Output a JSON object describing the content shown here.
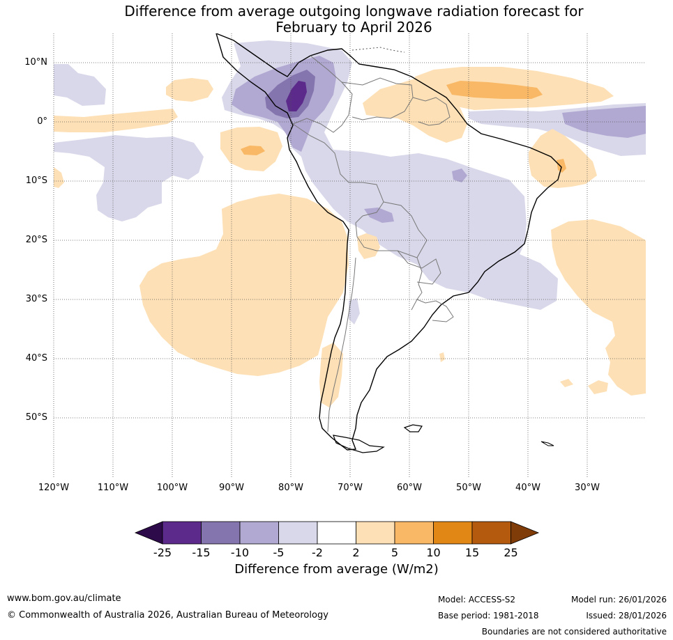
{
  "title": {
    "line1": "Difference from average outgoing longwave radiation forecast for",
    "line2": "February to April 2026"
  },
  "map": {
    "lat_labels": [
      "10°N",
      "0°",
      "10°S",
      "20°S",
      "30°S",
      "40°S",
      "50°S"
    ],
    "lon_labels": [
      "120°W",
      "110°W",
      "100°W",
      "90°W",
      "80°W",
      "70°W",
      "60°W",
      "50°W",
      "40°W",
      "30°W"
    ],
    "gridline_style": "dotted",
    "features": [
      "South America coastline",
      "national borders",
      "OLR anomaly shading"
    ]
  },
  "colorbar": {
    "ticks": [
      "-25",
      "-15",
      "-10",
      "-5",
      "-2",
      "2",
      "5",
      "10",
      "15",
      "25"
    ],
    "colors": [
      "#2d0a4a",
      "#5b2a8a",
      "#8575ae",
      "#b1a9d2",
      "#d9d8ea",
      "#ffffff",
      "#fde0b5",
      "#f9b865",
      "#e08716",
      "#b35a0e",
      "#7f3b08"
    ],
    "label": "Difference from average (W/m2)"
  },
  "footer": {
    "website": "www.bom.gov.au/climate",
    "copyright": "© Commonwealth of Australia 2026, Australian Bureau of Meteorology",
    "model": "Model: ACCESS-S2",
    "model_run": "Model run: 26/01/2026",
    "base_period": "Base period: 1981-2018",
    "issued": "Issued: 28/01/2026",
    "disclaimer": "Boundaries are not considered authoritative"
  }
}
